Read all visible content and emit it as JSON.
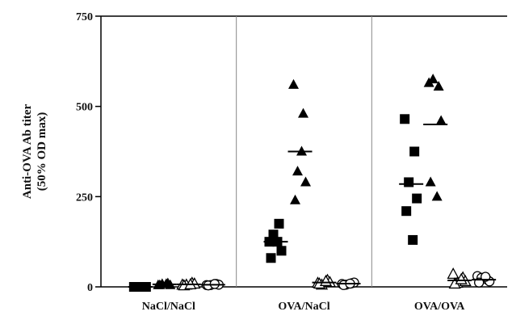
{
  "chart_data": {
    "type": "scatter",
    "title": "",
    "ylabel": [
      "Anti-OVA Ab titer",
      "(50% OD max)"
    ],
    "xlabel": "",
    "ylim": [
      0,
      750
    ],
    "yticks": [
      {
        "value": 0,
        "label": "0"
      },
      {
        "value": 250,
        "label": "250"
      },
      {
        "value": 500,
        "label": "500"
      },
      {
        "value": 750,
        "label": "750"
      }
    ],
    "grid": false,
    "legend": "none",
    "groups": [
      "NaCl/NaCl",
      "OVA/NaCl",
      "OVA/OVA"
    ],
    "series": [
      {
        "marker": "square-filled",
        "values": [
          [
            0,
            0,
            0,
            0,
            0,
            0
          ],
          [
            125,
            175,
            145,
            100,
            80,
            125
          ],
          [
            465,
            375,
            290,
            245,
            210,
            130
          ]
        ],
        "means": [
          0,
          125,
          285
        ]
      },
      {
        "marker": "triangle-filled",
        "values": [
          [
            5,
            10,
            8,
            5,
            5,
            8
          ],
          [
            560,
            480,
            320,
            290,
            240,
            375
          ],
          [
            565,
            555,
            575,
            460,
            290,
            250
          ]
        ],
        "means": [
          7,
          375,
          450
        ]
      },
      {
        "marker": "triangle-open",
        "values": [
          [
            5,
            10,
            5,
            8,
            3,
            6
          ],
          [
            10,
            18,
            5,
            12,
            8,
            15
          ],
          [
            35,
            25,
            10,
            15,
            8,
            20
          ]
        ],
        "means": [
          7,
          12,
          18
        ]
      },
      {
        "marker": "circle-open",
        "values": [
          [
            5,
            8,
            5,
            6,
            4,
            8
          ],
          [
            8,
            10,
            6,
            12,
            5,
            9
          ],
          [
            30,
            20,
            25,
            15,
            12,
            28
          ]
        ],
        "means": [
          6,
          9,
          20
        ]
      }
    ]
  }
}
